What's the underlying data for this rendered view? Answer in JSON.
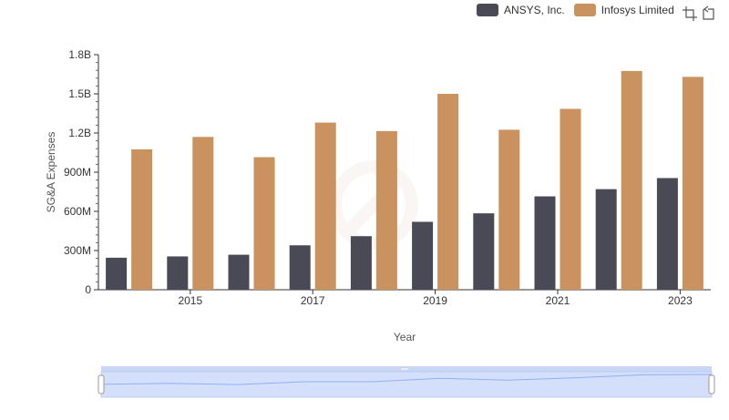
{
  "chart_data": {
    "type": "bar",
    "x": [
      2014,
      2015,
      2016,
      2017,
      2018,
      2019,
      2020,
      2021,
      2022,
      2023
    ],
    "x_tick_labels": [
      "2015",
      "2017",
      "2019",
      "2021",
      "2023"
    ],
    "series": [
      {
        "name": "ANSYS, Inc.",
        "color": "#4a4a56",
        "values": [
          245000000,
          255000000,
          268000000,
          340000000,
          410000000,
          520000000,
          585000000,
          715000000,
          770000000,
          855000000
        ]
      },
      {
        "name": "Infosys Limited",
        "color": "#c9925e",
        "values": [
          1075000000,
          1170000000,
          1015000000,
          1280000000,
          1215000000,
          1500000000,
          1225000000,
          1385000000,
          1675000000,
          1630000000
        ]
      }
    ],
    "xlabel": "Year",
    "ylabel": "SG&A Expenses",
    "ylim": [
      0,
      1800000000
    ],
    "y_ticks": [
      {
        "value": 0,
        "label": "0"
      },
      {
        "value": 300000000,
        "label": "300M"
      },
      {
        "value": 600000000,
        "label": "600M"
      },
      {
        "value": 900000000,
        "label": "900M"
      },
      {
        "value": 1200000000,
        "label": "1.2B"
      },
      {
        "value": 1500000000,
        "label": "1.5B"
      },
      {
        "value": 1800000000,
        "label": "1.8B"
      }
    ]
  },
  "colors": {
    "zoom_fill": "#d4e0fb",
    "zoom_line": "#8fb0f7",
    "axis": "#333333"
  }
}
